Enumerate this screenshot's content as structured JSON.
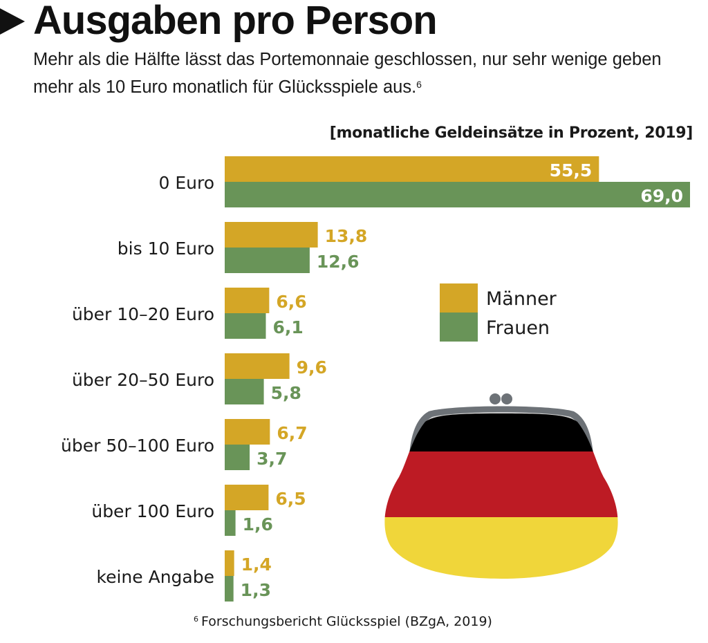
{
  "header": {
    "title": "Ausgaben pro Person",
    "subtitle": "Mehr als die Hälfte lässt das Portemonnaie geschlossen, nur sehr wenige geben mehr als 10 Euro monatlich für Glücksspiele aus.",
    "subtitle_footnote_ref": "6"
  },
  "footnote": {
    "ref": "6",
    "text": "Forschungsbericht Glücksspiel (BZgA, 2019)"
  },
  "colors": {
    "maenner": "#d4a626",
    "frauen": "#699458",
    "flag_black": "#000000",
    "flag_red": "#bd1b24",
    "flag_gold": "#f0d63a",
    "purse_frame": "#6d7277",
    "purse_frame_inner": "#d5d5d5"
  },
  "illustration": {
    "name": "purse-german-flag-icon"
  },
  "chart_data": {
    "type": "bar",
    "orientation": "horizontal",
    "title": "Ausgaben pro Person",
    "unit_label": "[monatliche Geldeinsätze in Prozent, 2019]",
    "xlabel": "",
    "ylabel": "",
    "xlim": [
      0,
      69.0
    ],
    "grid": false,
    "legend_position": "center-right",
    "categories": [
      "0 Euro",
      "bis 10 Euro",
      "über 10–20 Euro",
      "über 20–50 Euro",
      "über 50–100 Euro",
      "über 100 Euro",
      "keine Angabe"
    ],
    "series": [
      {
        "name": "Männer",
        "color": "#d4a626",
        "values": [
          55.5,
          13.8,
          6.6,
          9.6,
          6.7,
          6.5,
          1.4
        ],
        "labels": [
          "55,5",
          "13,8",
          "6,6",
          "9,6",
          "6,7",
          "6,5",
          "1,4"
        ]
      },
      {
        "name": "Frauen",
        "color": "#699458",
        "values": [
          69.0,
          12.6,
          6.1,
          5.8,
          3.7,
          1.6,
          1.3
        ],
        "labels": [
          "69,0",
          "12,6",
          "6,1",
          "5,8",
          "3,7",
          "1,6",
          "1,3"
        ]
      }
    ]
  }
}
